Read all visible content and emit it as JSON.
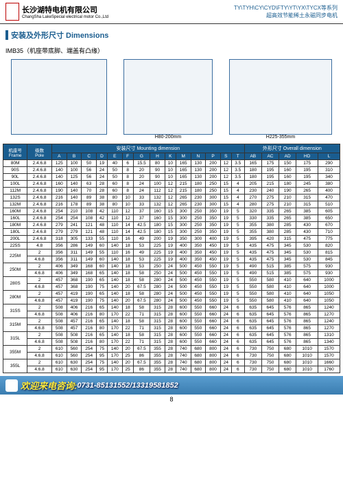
{
  "company": {
    "cn": "长沙湖特电机有限公司",
    "en": "ChangSha LakeSpecial electrical motor Co.,Ltd"
  },
  "series": {
    "l1": "TY\\TYH\\CY\\CYD\\FTY\\YT\\YX\\TYCX等系列",
    "l2": "超高效节能稀土永磁同步电机"
  },
  "sectTitle": "安装及外形尺寸 Dimensions",
  "subTitle": "IMB35（机座带底脚、端盖有凸缘）",
  "diagLabels": {
    "d2": "H80-200mm",
    "d3": "H225-355mm"
  },
  "thead": {
    "frame": "机座号\nFrame",
    "pole": "级数\nPole",
    "mount": "安装尺寸 Mounting dimension",
    "overall": "外形尺寸 Overall dimension",
    "cols": [
      "A",
      "B",
      "C",
      "D",
      "E",
      "F",
      "G",
      "H",
      "K",
      "M",
      "N",
      "P",
      "S",
      "T",
      "AB",
      "AC",
      "AD",
      "HD",
      "L"
    ]
  },
  "rows": [
    [
      "80M",
      "2.4.6.8",
      "125",
      "100",
      "50",
      "19",
      "40",
      "6",
      "15.5",
      "80",
      "10",
      "165",
      "130",
      "200",
      "12",
      "3.5",
      "165",
      "175",
      "150",
      "175",
      "290"
    ],
    [
      "90S",
      "2.4.6.8",
      "140",
      "100",
      "56",
      "24",
      "50",
      "8",
      "20",
      "90",
      "10",
      "165",
      "130",
      "200",
      "12",
      "3.5",
      "180",
      "195",
      "160",
      "195",
      "310"
    ],
    [
      "90L",
      "2.4.6.8",
      "140",
      "125",
      "56",
      "24",
      "50",
      "8",
      "20",
      "90",
      "10",
      "165",
      "130",
      "200",
      "12",
      "3.5",
      "180",
      "195",
      "160",
      "195",
      "340"
    ],
    [
      "100L",
      "2.4.6.8",
      "160",
      "140",
      "63",
      "28",
      "60",
      "8",
      "24",
      "100",
      "12",
      "215",
      "180",
      "250",
      "15",
      "4",
      "205",
      "215",
      "180",
      "245",
      "380"
    ],
    [
      "112M",
      "2.4.6.8",
      "190",
      "140",
      "70",
      "28",
      "60",
      "8",
      "24",
      "112",
      "12",
      "215",
      "180",
      "250",
      "15",
      "4",
      "230",
      "240",
      "190",
      "265",
      "400"
    ],
    [
      "132S",
      "2.4.6.8",
      "216",
      "140",
      "89",
      "38",
      "80",
      "10",
      "33",
      "132",
      "12",
      "265",
      "230",
      "300",
      "15",
      "4",
      "270",
      "275",
      "210",
      "315",
      "470"
    ],
    [
      "132M",
      "2.4.6.8",
      "216",
      "178",
      "89",
      "38",
      "80",
      "10",
      "33",
      "132",
      "12",
      "265",
      "230",
      "300",
      "15",
      "4",
      "280",
      "275",
      "210",
      "315",
      "510"
    ],
    [
      "160M",
      "2.4.6.8",
      "254",
      "210",
      "108",
      "42",
      "110",
      "12",
      "37",
      "160",
      "15",
      "300",
      "250",
      "350",
      "19",
      "5",
      "320",
      "335",
      "265",
      "385",
      "605"
    ],
    [
      "160L",
      "2.4.6.8",
      "254",
      "254",
      "108",
      "42",
      "110",
      "12",
      "37",
      "160",
      "15",
      "300",
      "250",
      "350",
      "19",
      "5",
      "330",
      "335",
      "265",
      "385",
      "650"
    ],
    [
      "180M",
      "2.4.6.8",
      "279",
      "241",
      "121",
      "48",
      "110",
      "14",
      "42.5",
      "180",
      "15",
      "300",
      "250",
      "350",
      "19",
      "5",
      "355",
      "380",
      "285",
      "430",
      "670"
    ],
    [
      "180L",
      "2.4.6.8",
      "279",
      "279",
      "121",
      "48",
      "110",
      "14",
      "42.5",
      "180",
      "15",
      "300",
      "250",
      "350",
      "19",
      "5",
      "355",
      "380",
      "285",
      "430",
      "710"
    ],
    [
      "200L",
      "2.4.6.8",
      "318",
      "305",
      "133",
      "55",
      "110",
      "16",
      "49",
      "200",
      "19",
      "350",
      "300",
      "400",
      "19",
      "5",
      "395",
      "420",
      "315",
      "475",
      "775"
    ],
    [
      "225S",
      "4.8",
      "356",
      "286",
      "149",
      "60",
      "140",
      "18",
      "53",
      "225",
      "19",
      "400",
      "350",
      "450",
      "19",
      "5",
      "435",
      "475",
      "345",
      "530",
      "820"
    ],
    [
      "225M",
      "2",
      "356",
      "311",
      "149",
      "55",
      "110",
      "16",
      "49",
      "225",
      "19",
      "400",
      "350",
      "450",
      "19",
      "5",
      "435",
      "475",
      "345",
      "530",
      "815"
    ],
    [
      "225M",
      "4.6.8",
      "356",
      "311",
      "149",
      "60",
      "140",
      "18",
      "53",
      "225",
      "19",
      "400",
      "350",
      "450",
      "19",
      "5",
      "435",
      "475",
      "345",
      "530",
      "845"
    ],
    [
      "250M",
      "2",
      "406",
      "349",
      "168",
      "60",
      "140",
      "18",
      "53",
      "250",
      "24",
      "500",
      "450",
      "550",
      "19",
      "5",
      "490",
      "515",
      "385",
      "575",
      "930"
    ],
    [
      "250M",
      "4.6.8",
      "406",
      "349",
      "168",
      "65",
      "140",
      "18",
      "58",
      "250",
      "24",
      "500",
      "450",
      "550",
      "19",
      "5",
      "490",
      "515",
      "385",
      "575",
      "930"
    ],
    [
      "280S",
      "2",
      "457",
      "368",
      "190",
      "65",
      "140",
      "18",
      "58",
      "280",
      "24",
      "500",
      "450",
      "550",
      "19",
      "5",
      "550",
      "580",
      "410",
      "640",
      "1000"
    ],
    [
      "280S",
      "4.6.8",
      "457",
      "368",
      "190",
      "75",
      "140",
      "20",
      "67.5",
      "280",
      "24",
      "500",
      "450",
      "550",
      "19",
      "5",
      "550",
      "580",
      "410",
      "640",
      "1000"
    ],
    [
      "280M",
      "2",
      "457",
      "419",
      "190",
      "65",
      "140",
      "18",
      "58",
      "280",
      "24",
      "500",
      "450",
      "550",
      "19",
      "5",
      "550",
      "580",
      "410",
      "640",
      "1050"
    ],
    [
      "280M",
      "4.6.8",
      "457",
      "419",
      "190",
      "75",
      "140",
      "20",
      "67.5",
      "280",
      "24",
      "500",
      "450",
      "550",
      "19",
      "5",
      "550",
      "580",
      "410",
      "640",
      "1050"
    ],
    [
      "315S",
      "2",
      "508",
      "406",
      "216",
      "65",
      "140",
      "18",
      "58",
      "315",
      "28",
      "600",
      "550",
      "660",
      "24",
      "6",
      "635",
      "645",
      "576",
      "865",
      "1240"
    ],
    [
      "315S",
      "4.6.8",
      "508",
      "406",
      "216",
      "80",
      "170",
      "22",
      "71",
      "315",
      "28",
      "600",
      "550",
      "660",
      "24",
      "6",
      "635",
      "645",
      "576",
      "865",
      "1270"
    ],
    [
      "315M",
      "2",
      "508",
      "457",
      "216",
      "65",
      "140",
      "18",
      "58",
      "315",
      "28",
      "600",
      "550",
      "660",
      "24",
      "6",
      "635",
      "645",
      "576",
      "865",
      "1240"
    ],
    [
      "315M",
      "4.6.8",
      "508",
      "457",
      "216",
      "80",
      "170",
      "22",
      "71",
      "315",
      "28",
      "600",
      "550",
      "660",
      "24",
      "6",
      "635",
      "645",
      "576",
      "865",
      "1270"
    ],
    [
      "315L",
      "2",
      "508",
      "508",
      "216",
      "65",
      "140",
      "18",
      "58",
      "315",
      "28",
      "600",
      "550",
      "660",
      "24",
      "6",
      "635",
      "645",
      "576",
      "865",
      "1310"
    ],
    [
      "315L",
      "4.6.8",
      "508",
      "508",
      "216",
      "80",
      "170",
      "22",
      "71",
      "315",
      "28",
      "600",
      "550",
      "660",
      "24",
      "6",
      "635",
      "645",
      "576",
      "865",
      "1340"
    ],
    [
      "355M",
      "2",
      "610",
      "560",
      "254",
      "75",
      "140",
      "20",
      "67.5",
      "355",
      "28",
      "740",
      "680",
      "800",
      "24",
      "6",
      "730",
      "750",
      "680",
      "1010",
      "1570"
    ],
    [
      "355M",
      "4.6.8",
      "610",
      "560",
      "254",
      "95",
      "170",
      "25",
      "86",
      "355",
      "28",
      "740",
      "680",
      "800",
      "24",
      "6",
      "730",
      "750",
      "680",
      "1010",
      "1570"
    ],
    [
      "355L",
      "2",
      "610",
      "630",
      "254",
      "75",
      "140",
      "20",
      "67.5",
      "355",
      "28",
      "740",
      "680",
      "800",
      "24",
      "6",
      "730",
      "750",
      "680",
      "1010",
      "1660"
    ],
    [
      "355L",
      "4.6.8",
      "610",
      "630",
      "254",
      "95",
      "170",
      "25",
      "86",
      "355",
      "28",
      "740",
      "680",
      "800",
      "24",
      "6",
      "730",
      "750",
      "680",
      "1010",
      "1760"
    ]
  ],
  "footer": {
    "txt1": "欢迎来电咨询:",
    "txt2": "0731-85131552/13319581852"
  },
  "page": "8"
}
